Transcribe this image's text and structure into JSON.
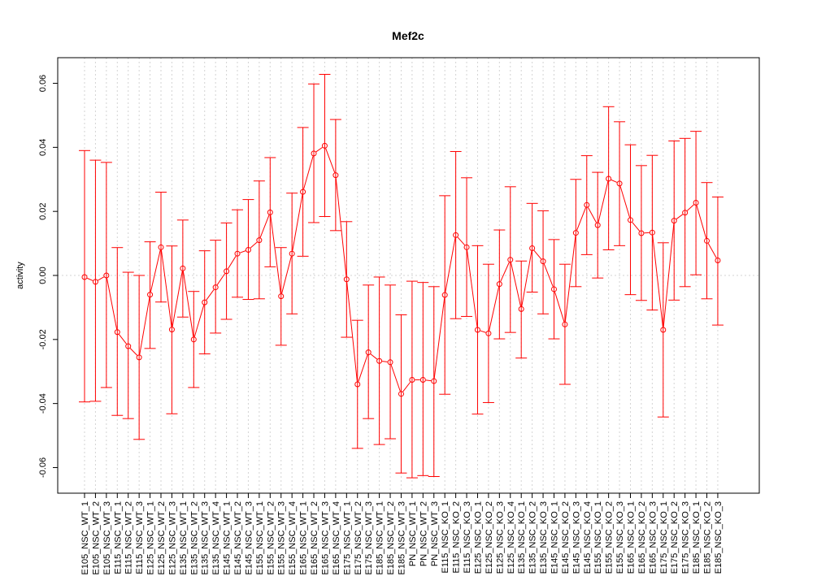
{
  "chart_data": {
    "type": "line",
    "title": "Mef2c",
    "xlabel": "",
    "ylabel": "activity",
    "ylim": [
      -0.068,
      0.068
    ],
    "yticks": [
      -0.06,
      -0.04,
      -0.02,
      0.0,
      0.02,
      0.04,
      0.06
    ],
    "ytick_labels": [
      "-0.06",
      "-0.04",
      "-0.02",
      "0.00",
      "0.02",
      "0.04",
      "0.06"
    ],
    "grid": true,
    "color": "#ff0000",
    "categories": [
      "E105_NSC_WT_1",
      "E105_NSC_WT_2",
      "E105_NSC_WT_3",
      "E115_NSC_WT_1",
      "E115_NSC_WT_2",
      "E115_NSC_WT_3",
      "E125_NSC_WT_1",
      "E125_NSC_WT_2",
      "E125_NSC_WT_3",
      "E135_NSC_WT_1",
      "E135_NSC_WT_2",
      "E135_NSC_WT_3",
      "E135_NSC_WT_4",
      "E145_NSC_WT_1",
      "E145_NSC_WT_2",
      "E145_NSC_WT_3",
      "E155_NSC_WT_1",
      "E155_NSC_WT_2",
      "E155_NSC_WT_3",
      "E155_NSC_WT_4",
      "E165_NSC_WT_1",
      "E165_NSC_WT_2",
      "E165_NSC_WT_3",
      "E165_NSC_WT_4",
      "E175_NSC_WT_1",
      "E175_NSC_WT_2",
      "E175_NSC_WT_3",
      "E185_NSC_WT_1",
      "E185_NSC_WT_2",
      "E185_NSC_WT_3",
      "PN_NSC_WT_1",
      "PN_NSC_WT_2",
      "PN_NSC_WT_3",
      "E115_NSC_KO_1",
      "E115_NSC_KO_2",
      "E115_NSC_KO_3",
      "E125_NSC_KO_1",
      "E125_NSC_KO_2",
      "E125_NSC_KO_3",
      "E125_NSC_KO_4",
      "E135_NSC_KO_1",
      "E135_NSC_KO_2",
      "E135_NSC_KO_3",
      "E145_NSC_KO_1",
      "E145_NSC_KO_2",
      "E145_NSC_KO_3",
      "E145_NSC_KO_4",
      "E155_NSC_KO_1",
      "E155_NSC_KO_2",
      "E155_NSC_KO_3",
      "E165_NSC_KO_1",
      "E165_NSC_KO_2",
      "E165_NSC_KO_3",
      "E175_NSC_KO_1",
      "E175_NSC_KO_2",
      "E175_NSC_KO_3",
      "E185_NSC_KO_1",
      "E185_NSC_KO_2",
      "E185_NSC_KO_3"
    ],
    "values": [
      -0.0005,
      -0.002,
      0.0,
      -0.0177,
      -0.0221,
      -0.0256,
      -0.006,
      0.0088,
      -0.0169,
      0.0022,
      -0.02,
      -0.0084,
      -0.0037,
      0.0013,
      0.0068,
      0.008,
      0.011,
      0.0197,
      -0.0065,
      0.0068,
      0.0261,
      0.0381,
      0.0405,
      0.0313,
      -0.0012,
      -0.034,
      -0.024,
      -0.0267,
      -0.0271,
      -0.037,
      -0.0326,
      -0.0326,
      -0.033,
      -0.0061,
      0.0126,
      0.0088,
      -0.017,
      -0.0181,
      -0.0027,
      0.0049,
      -0.0105,
      0.0085,
      0.0044,
      -0.0043,
      -0.0153,
      0.0133,
      0.022,
      0.0157,
      0.0302,
      0.0287,
      0.0173,
      0.0132,
      0.0134,
      -0.017,
      0.0171,
      0.0196,
      0.0227,
      0.0108,
      0.0047
    ],
    "upper": [
      0.039,
      0.036,
      0.0353,
      0.0087,
      0.001,
      0.0,
      0.0105,
      0.026,
      0.0092,
      0.0173,
      -0.005,
      0.0077,
      0.011,
      0.0164,
      0.0205,
      0.0237,
      0.0295,
      0.0368,
      0.0087,
      0.0257,
      0.0462,
      0.0598,
      0.0628,
      0.0487,
      0.0168,
      -0.014,
      -0.003,
      -0.0005,
      -0.003,
      -0.0123,
      -0.0018,
      -0.0022,
      -0.0035,
      0.0249,
      0.0387,
      0.0305,
      0.0093,
      0.0035,
      0.0142,
      0.0277,
      0.0045,
      0.0225,
      0.0202,
      0.0112,
      0.0035,
      0.03,
      0.0374,
      0.0322,
      0.0527,
      0.048,
      0.0408,
      0.0343,
      0.0375,
      0.0102,
      0.042,
      0.0428,
      0.045,
      0.029,
      0.0245
    ],
    "lower": [
      -0.0395,
      -0.0393,
      -0.035,
      -0.0437,
      -0.0447,
      -0.0512,
      -0.0228,
      -0.0083,
      -0.0432,
      -0.013,
      -0.035,
      -0.0245,
      -0.018,
      -0.0137,
      -0.0068,
      -0.0075,
      -0.0073,
      0.0027,
      -0.0218,
      -0.012,
      0.006,
      0.0165,
      0.0184,
      0.014,
      -0.0193,
      -0.054,
      -0.0447,
      -0.0528,
      -0.051,
      -0.0617,
      -0.0632,
      -0.0625,
      -0.0628,
      -0.0371,
      -0.0135,
      -0.0128,
      -0.0433,
      -0.0397,
      -0.0198,
      -0.0178,
      -0.0258,
      -0.0052,
      -0.012,
      -0.0198,
      -0.034,
      -0.0035,
      0.0065,
      -0.0008,
      0.008,
      0.0093,
      -0.006,
      -0.0078,
      -0.0108,
      -0.0442,
      -0.0077,
      -0.0035,
      0.0002,
      -0.0073,
      -0.0155
    ]
  }
}
